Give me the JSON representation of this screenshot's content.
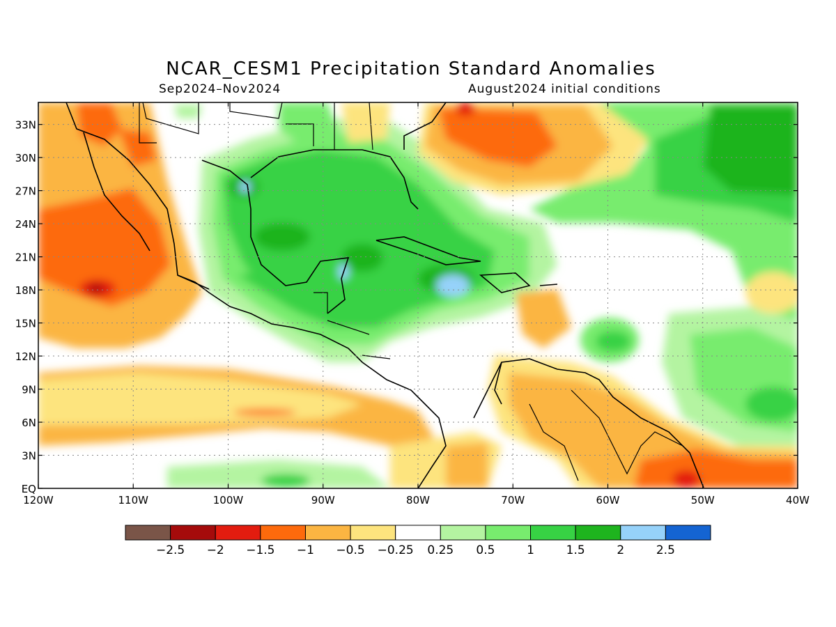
{
  "title": "NCAR_CESM1 Precipitation Standard Anomalies",
  "subtitle_left": "Sep2024–Nov2024",
  "subtitle_right": "August2024 initial conditions",
  "map": {
    "lon_range": [
      -120,
      -40
    ],
    "lat_range": [
      0,
      35
    ],
    "lon_ticks": [
      "120W",
      "110W",
      "100W",
      "90W",
      "80W",
      "70W",
      "60W",
      "50W",
      "40W"
    ],
    "lat_ticks": [
      "EQ",
      "3N",
      "6N",
      "9N",
      "12N",
      "15N",
      "18N",
      "21N",
      "24N",
      "27N",
      "30N",
      "33N"
    ],
    "grid": true
  },
  "colorbar": {
    "colors": [
      "#7a5548",
      "#a50b0b",
      "#e31c0f",
      "#fd6a0c",
      "#fbb542",
      "#fde47e",
      "#ffffff",
      "#b4f4a1",
      "#78ec6e",
      "#37d244",
      "#1eb41e",
      "#96d2fa",
      "#1464d2"
    ],
    "labels": [
      "−2.5",
      "−2",
      "−1.5",
      "−1",
      "−0.5",
      "−0.25",
      "0.25",
      "0.5",
      "1",
      "1.5",
      "2",
      "2.5"
    ]
  }
}
